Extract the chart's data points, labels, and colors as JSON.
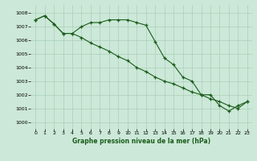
{
  "title": "Graphe pression niveau de la mer (hPa)",
  "bg_color": "#cce8d8",
  "grid_color": "#aacfbb",
  "line_color": "#1a5c1a",
  "ylim": [
    999.5,
    1008.6
  ],
  "yticks": [
    1000,
    1001,
    1002,
    1003,
    1004,
    1005,
    1006,
    1007,
    1008
  ],
  "xlim": [
    -0.5,
    23.5
  ],
  "xticks": [
    0,
    1,
    2,
    3,
    4,
    5,
    6,
    7,
    8,
    9,
    10,
    11,
    12,
    13,
    14,
    15,
    16,
    17,
    18,
    19,
    20,
    21,
    22,
    23
  ],
  "line1_x": [
    0,
    1,
    2,
    3,
    4,
    5,
    6,
    7,
    8,
    9,
    10,
    11,
    12,
    13,
    14,
    15,
    16,
    17,
    18,
    19,
    20,
    21,
    22,
    23
  ],
  "line1_y": [
    1007.5,
    1007.8,
    1007.2,
    1006.5,
    1006.5,
    1007.0,
    1007.3,
    1007.3,
    1007.5,
    1007.5,
    1007.5,
    1007.3,
    1007.1,
    1005.9,
    1004.7,
    1004.2,
    1003.3,
    1003.0,
    1002.0,
    1002.0,
    1001.2,
    1000.8,
    1001.2,
    1001.5
  ],
  "line2_x": [
    0,
    1,
    2,
    3,
    4,
    5,
    6,
    7,
    8,
    9,
    10,
    11,
    12,
    13,
    14,
    15,
    16,
    17,
    18,
    19,
    20,
    21,
    22,
    23
  ],
  "line2_y": [
    1007.5,
    1007.8,
    1007.2,
    1006.5,
    1006.5,
    1006.2,
    1005.8,
    1005.5,
    1005.2,
    1004.8,
    1004.5,
    1004.0,
    1003.7,
    1003.3,
    1003.0,
    1002.8,
    1002.5,
    1002.2,
    1002.0,
    1001.7,
    1001.5,
    1001.2,
    1001.0,
    1001.5
  ]
}
